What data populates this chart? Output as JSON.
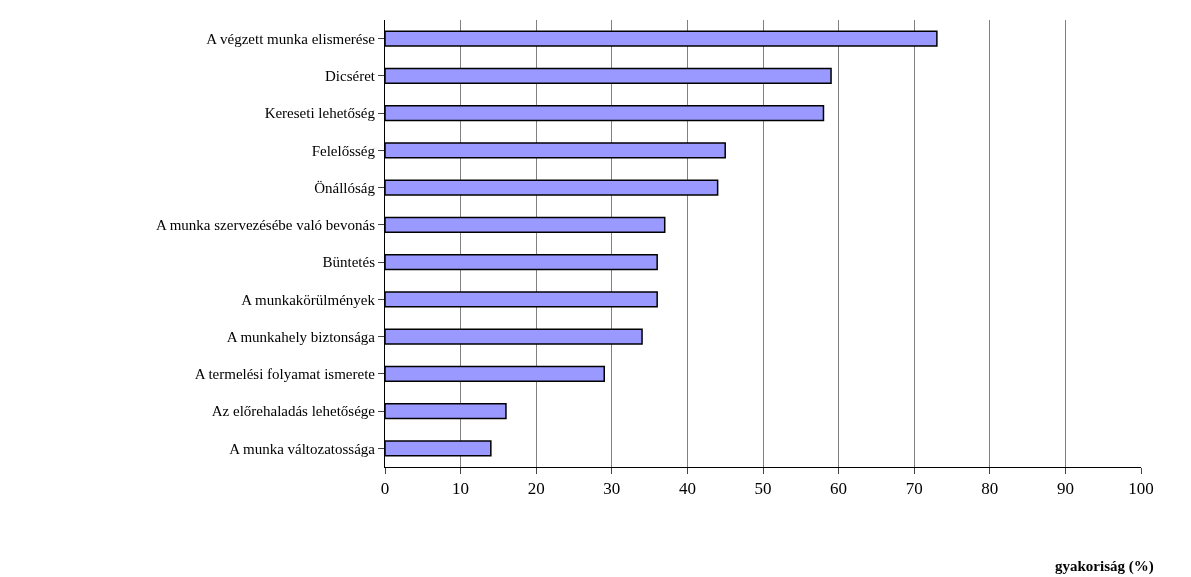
{
  "chart_data": {
    "type": "bar",
    "orientation": "horizontal",
    "xlabel": "gyakoriság (%)",
    "categories": [
      "A végzett munka elismerése",
      "Dicséret",
      "Kereseti lehetőség",
      "Felelősség",
      "Önállóság",
      "A munka szervezésébe való bevonás",
      "Büntetés",
      "A munkakörülmények",
      "A munkahely biztonsága",
      "A termelési folyamat ismerete",
      "Az előrehaladás lehetősége",
      "A munka változatossága"
    ],
    "values": [
      73,
      59,
      58,
      45,
      44,
      37,
      36,
      36,
      34,
      29,
      16,
      14
    ],
    "color": "#9999ff",
    "xlim": [
      0,
      100
    ],
    "xticks": [
      0,
      10,
      20,
      30,
      40,
      50,
      60,
      70,
      80,
      90,
      100
    ],
    "grid": "x",
    "legend": false
  }
}
